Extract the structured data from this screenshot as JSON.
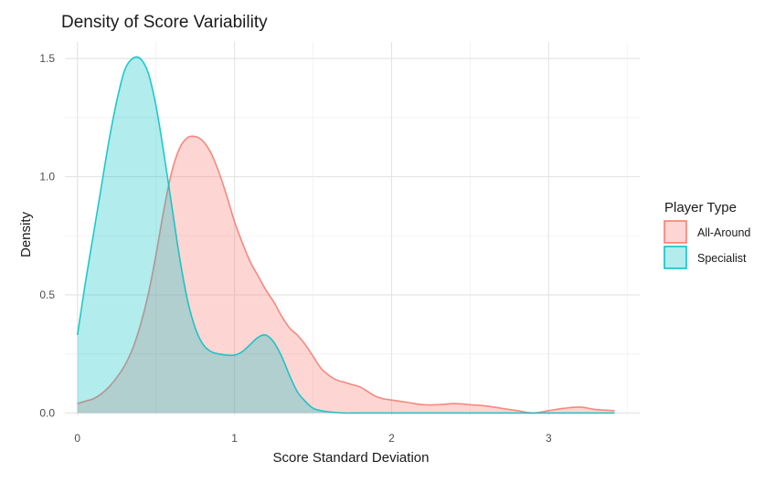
{
  "chart_data": {
    "type": "area",
    "title": "Density of Score Variability",
    "xlabel": "Score Standard Deviation",
    "ylabel": "Density",
    "xlim": [
      -0.08,
      3.58
    ],
    "ylim": [
      -0.01,
      1.57
    ],
    "x_ticks": [
      0,
      1,
      2,
      3
    ],
    "x_tick_labels": [
      "0",
      "1",
      "2",
      "3"
    ],
    "y_ticks": [
      0,
      0.5,
      1,
      1.5
    ],
    "y_tick_labels": [
      "0.0",
      "0.5",
      "1.0",
      "1.5"
    ],
    "grid": true,
    "legend": {
      "title": "Player Type",
      "position": "right"
    },
    "series": [
      {
        "name": "All-Around",
        "color": "#F8766D",
        "x": [
          0.0,
          0.05,
          0.1,
          0.15,
          0.2,
          0.25,
          0.3,
          0.35,
          0.4,
          0.45,
          0.5,
          0.55,
          0.6,
          0.65,
          0.7,
          0.75,
          0.8,
          0.85,
          0.9,
          0.95,
          1.0,
          1.05,
          1.1,
          1.15,
          1.2,
          1.25,
          1.3,
          1.35,
          1.4,
          1.45,
          1.5,
          1.55,
          1.6,
          1.65,
          1.7,
          1.75,
          1.8,
          1.85,
          1.9,
          1.95,
          2.0,
          2.1,
          2.2,
          2.3,
          2.4,
          2.5,
          2.6,
          2.7,
          2.8,
          2.9,
          3.0,
          3.1,
          3.2,
          3.3,
          3.42
        ],
        "values": [
          0.04,
          0.05,
          0.06,
          0.08,
          0.11,
          0.15,
          0.2,
          0.27,
          0.37,
          0.5,
          0.67,
          0.86,
          1.02,
          1.12,
          1.165,
          1.17,
          1.15,
          1.1,
          1.02,
          0.92,
          0.81,
          0.72,
          0.64,
          0.58,
          0.52,
          0.47,
          0.41,
          0.36,
          0.33,
          0.29,
          0.24,
          0.19,
          0.16,
          0.14,
          0.13,
          0.12,
          0.11,
          0.09,
          0.07,
          0.06,
          0.055,
          0.045,
          0.035,
          0.035,
          0.04,
          0.035,
          0.03,
          0.02,
          0.01,
          0.0,
          0.01,
          0.02,
          0.025,
          0.015,
          0.01
        ]
      },
      {
        "name": "Specialist",
        "color": "#00BFC4",
        "x": [
          0.0,
          0.05,
          0.1,
          0.15,
          0.2,
          0.25,
          0.3,
          0.35,
          0.4,
          0.45,
          0.5,
          0.55,
          0.6,
          0.65,
          0.7,
          0.75,
          0.8,
          0.85,
          0.9,
          0.95,
          1.0,
          1.05,
          1.1,
          1.15,
          1.2,
          1.25,
          1.3,
          1.35,
          1.4,
          1.45,
          1.5,
          1.55,
          1.6,
          1.7,
          1.8,
          2.0,
          2.5,
          3.0,
          3.42
        ],
        "values": [
          0.33,
          0.55,
          0.75,
          0.95,
          1.15,
          1.32,
          1.45,
          1.5,
          1.5,
          1.44,
          1.3,
          1.1,
          0.88,
          0.66,
          0.48,
          0.36,
          0.29,
          0.26,
          0.25,
          0.245,
          0.245,
          0.26,
          0.29,
          0.32,
          0.33,
          0.3,
          0.24,
          0.16,
          0.09,
          0.05,
          0.02,
          0.01,
          0.005,
          0.0,
          0.0,
          0.0,
          0.0,
          0.0,
          0.0
        ]
      }
    ]
  }
}
